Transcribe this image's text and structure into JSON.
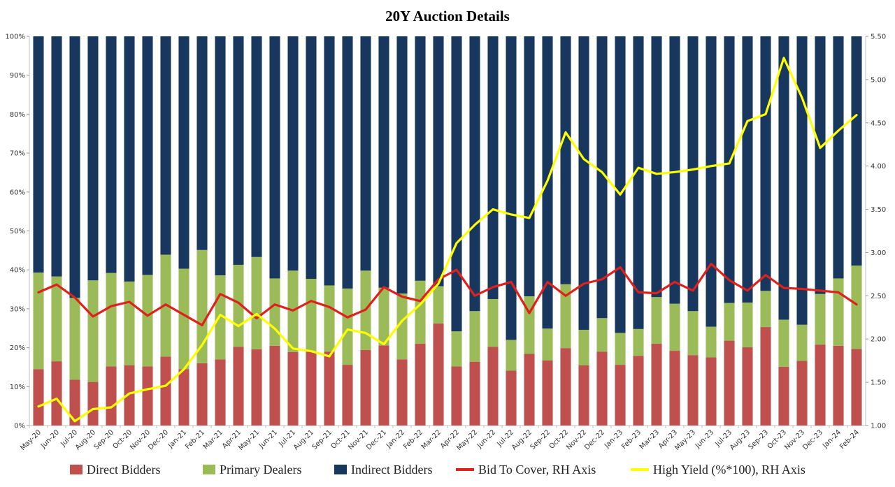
{
  "chart_data": {
    "type": "bar",
    "stacked": true,
    "title": "20Y Auction Details",
    "categories": [
      "May-20",
      "Jun-20",
      "Jul-20",
      "Aug-20",
      "Sep-20",
      "Oct-20",
      "Nov-20",
      "Dec-20",
      "Jan-21",
      "Feb-21",
      "Mar-21",
      "Apr-21",
      "May-21",
      "Jun-21",
      "Jul-21",
      "Aug-21",
      "Sep-21",
      "Oct-21",
      "Nov-21",
      "Dec-21",
      "Jan-22",
      "Feb-22",
      "Mar-22",
      "Apr-22",
      "May-22",
      "Jun-22",
      "Jul-22",
      "Aug-22",
      "Sep-22",
      "Oct-22",
      "Nov-22",
      "Dec-22",
      "Jan-23",
      "Feb-23",
      "Mar-23",
      "Apr-23",
      "May-23",
      "Jun-23",
      "Jul-23",
      "Aug-23",
      "Sep-23",
      "Oct-23",
      "Nov-23",
      "Dec-23",
      "Jan-24",
      "Feb-24"
    ],
    "left_axis": {
      "min": 0,
      "max": 100,
      "step": 10,
      "tick_labels": [
        "0%",
        "10%",
        "20%",
        "30%",
        "40%",
        "50%",
        "60%",
        "70%",
        "80%",
        "90%",
        "100%"
      ]
    },
    "right_axis": {
      "min": 1.0,
      "max": 5.5,
      "step": 0.5,
      "tick_labels": [
        "1.00",
        "1.50",
        "2.00",
        "2.50",
        "3.00",
        "3.50",
        "4.00",
        "4.50",
        "5.00",
        "5.50"
      ]
    },
    "series": [
      {
        "name": "Direct Bidders",
        "kind": "bar",
        "axis": "left",
        "color": "#c0504d",
        "values": [
          14.5,
          16.5,
          11.8,
          11.2,
          15.2,
          15.5,
          15.2,
          17.7,
          14.5,
          16.0,
          17.0,
          20.2,
          19.6,
          20.5,
          18.9,
          19.0,
          19.0,
          15.6,
          19.4,
          20.6,
          17.0,
          21.0,
          26.2,
          15.2,
          16.4,
          20.2,
          14.1,
          18.4,
          16.7,
          19.9,
          15.5,
          19.0,
          15.6,
          17.9,
          21.0,
          19.2,
          18.1,
          17.5,
          21.8,
          20.1,
          25.3,
          15.1,
          16.6,
          20.8,
          20.5,
          19.7
        ]
      },
      {
        "name": "Primary Dealers",
        "kind": "bar",
        "axis": "left",
        "color": "#9bbb59",
        "values": [
          24.8,
          21.8,
          21.0,
          26.1,
          24.0,
          21.5,
          23.5,
          26.2,
          25.8,
          29.1,
          21.6,
          21.1,
          23.7,
          17.3,
          20.9,
          18.7,
          17.0,
          19.6,
          20.4,
          14.8,
          16.9,
          16.2,
          9.6,
          9.0,
          13.0,
          12.3,
          7.9,
          14.8,
          8.2,
          16.4,
          9.1,
          8.6,
          8.2,
          6.9,
          12.0,
          12.1,
          11.3,
          7.9,
          9.7,
          11.5,
          9.3,
          12.1,
          9.3,
          13.0,
          17.3,
          21.4
        ]
      },
      {
        "name": "Indirect Bidders",
        "kind": "bar",
        "axis": "left",
        "color": "#17375e",
        "values": [
          60.7,
          61.7,
          67.2,
          62.7,
          60.8,
          63.0,
          61.3,
          56.1,
          59.7,
          54.9,
          61.4,
          58.7,
          56.7,
          62.2,
          60.2,
          62.3,
          64.0,
          64.8,
          60.2,
          64.6,
          66.1,
          62.8,
          64.2,
          75.8,
          70.6,
          67.5,
          78.0,
          66.8,
          75.1,
          63.7,
          75.4,
          72.4,
          76.2,
          75.2,
          67.0,
          68.7,
          70.6,
          74.6,
          68.5,
          68.4,
          65.4,
          72.8,
          74.1,
          66.2,
          62.2,
          58.9
        ]
      },
      {
        "name": "Bid To Cover, RH Axis",
        "kind": "line",
        "axis": "right",
        "color": "#e0201b",
        "values": [
          2.54,
          2.63,
          2.48,
          2.26,
          2.38,
          2.43,
          2.27,
          2.4,
          2.28,
          2.16,
          2.52,
          2.42,
          2.24,
          2.4,
          2.33,
          2.44,
          2.37,
          2.25,
          2.34,
          2.6,
          2.49,
          2.44,
          2.69,
          2.8,
          2.5,
          2.6,
          2.66,
          2.3,
          2.66,
          2.5,
          2.64,
          2.69,
          2.83,
          2.54,
          2.53,
          2.66,
          2.56,
          2.87,
          2.68,
          2.56,
          2.74,
          2.59,
          2.58,
          2.56,
          2.54,
          2.4
        ]
      },
      {
        "name": "High Yield (%*100), RH Axis",
        "kind": "line",
        "axis": "right",
        "color": "#ffff00",
        "values": [
          1.22,
          1.31,
          1.05,
          1.19,
          1.21,
          1.37,
          1.42,
          1.46,
          1.65,
          1.93,
          2.28,
          2.15,
          2.29,
          2.12,
          1.89,
          1.86,
          1.8,
          2.11,
          2.07,
          1.94,
          2.21,
          2.4,
          2.64,
          3.11,
          3.32,
          3.5,
          3.44,
          3.4,
          3.83,
          4.39,
          4.08,
          3.93,
          3.67,
          3.98,
          3.91,
          3.93,
          3.96,
          4.0,
          4.03,
          4.52,
          4.6,
          5.25,
          4.79,
          4.21,
          4.41,
          4.59
        ]
      }
    ],
    "legend_position": "bottom"
  }
}
